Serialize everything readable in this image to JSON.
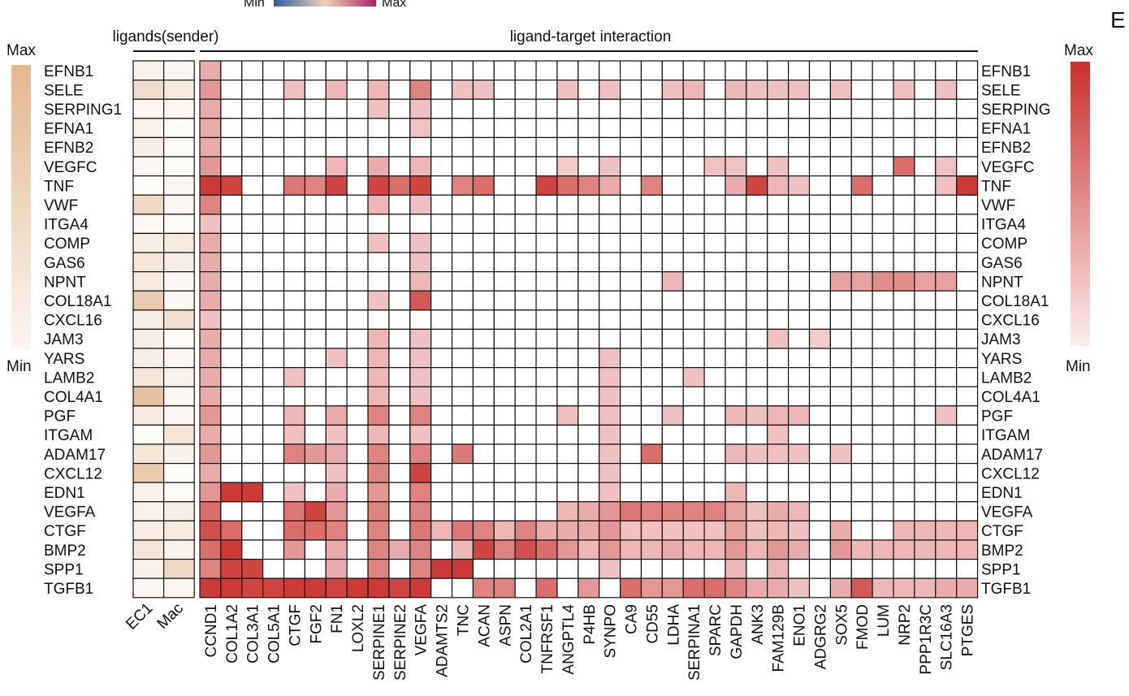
{
  "panel_label": "E",
  "scale_top": {
    "min_label": "Min",
    "max_label": "Max"
  },
  "left_scale": {
    "max_label": "Max",
    "min_label": "Min",
    "color_max": "#e2b78d",
    "color_min": "#fcf6f1"
  },
  "right_scale": {
    "max_label": "Max",
    "min_label": "Min",
    "color_max": "#c9302c",
    "color_min": "#fbeeed"
  },
  "colors": {
    "ligand_max": "#d9a77a",
    "interaction_max": "#c9302c",
    "grid": "#111111"
  },
  "chart_data": [
    {
      "type": "heatmap",
      "title": "ligands(sender)",
      "rows": [
        "EFNB1",
        "SELE",
        "SERPING1",
        "EFNA1",
        "EFNB2",
        "VEGFC",
        "TNF",
        "VWF",
        "ITGA4",
        "COMP",
        "GAS6",
        "NPNT",
        "COL18A1",
        "CXCL16",
        "JAM3",
        "YARS",
        "LAMB2",
        "COL4A1",
        "PGF",
        "ITGAM",
        "ADAM17",
        "CXCL12",
        "EDN1",
        "VEGFA",
        "CTGF",
        "BMP2",
        "SPP1",
        "TGFB1"
      ],
      "columns": [
        "EC1",
        "Mac"
      ],
      "values": [
        [
          0.15,
          0.1
        ],
        [
          0.4,
          0.25
        ],
        [
          0.1,
          0.1
        ],
        [
          0.15,
          0.05
        ],
        [
          0.2,
          0.05
        ],
        [
          0.1,
          0.05
        ],
        [
          0.05,
          0.1
        ],
        [
          0.45,
          0.1
        ],
        [
          0.1,
          0.05
        ],
        [
          0.2,
          0.25
        ],
        [
          0.3,
          0.2
        ],
        [
          0.25,
          0.1
        ],
        [
          0.6,
          0.1
        ],
        [
          0.2,
          0.35
        ],
        [
          0.2,
          0.05
        ],
        [
          0.2,
          0.1
        ],
        [
          0.3,
          0.15
        ],
        [
          0.7,
          0.1
        ],
        [
          0.25,
          0.1
        ],
        [
          0.05,
          0.3
        ],
        [
          0.3,
          0.15
        ],
        [
          0.6,
          0.05
        ],
        [
          0.15,
          0.05
        ],
        [
          0.15,
          0.2
        ],
        [
          0.2,
          0.25
        ],
        [
          0.3,
          0.15
        ],
        [
          0.15,
          0.45
        ],
        [
          0.1,
          0.1
        ]
      ]
    },
    {
      "type": "heatmap",
      "title": "ligand-target interaction",
      "rows": [
        "EFNB1",
        "SELE",
        "SERPING1",
        "EFNA1",
        "EFNB2",
        "VEGFC",
        "TNF",
        "VWF",
        "ITGA4",
        "COMP",
        "GAS6",
        "NPNT",
        "COL18A1",
        "CXCL16",
        "JAM3",
        "YARS",
        "LAMB2",
        "COL4A1",
        "PGF",
        "ITGAM",
        "ADAM17",
        "CXCL12",
        "EDN1",
        "VEGFA",
        "CTGF",
        "BMP2",
        "SPP1",
        "TGFB1"
      ],
      "row_labels_right": [
        "EFNB1",
        "SELE",
        "SERPING",
        "EFNA1",
        "EFNB2",
        "VEGFC",
        "TNF",
        "VWF",
        "ITGA4",
        "COMP",
        "GAS6",
        "NPNT",
        "COL18A1",
        "CXCL16",
        "JAM3",
        "YARS",
        "LAMB2",
        "COL4A1",
        "PGF",
        "ITGAM",
        "ADAM17",
        "CXCL12",
        "EDN1",
        "VEGFA",
        "CTGF",
        "BMP2",
        "SPP1",
        "TGFB1"
      ],
      "columns": [
        "CCND1",
        "COL1A2",
        "COL3A1",
        "COL5A1",
        "CTGF",
        "FGF2",
        "FN1",
        "LOXL2",
        "SERPINE1",
        "SERPINE2",
        "VEGFA",
        "ADAMTS2",
        "TNC",
        "ACAN",
        "ASPN",
        "COL2A1",
        "TNFRSF1",
        "ANGPTL4",
        "P4HB",
        "SYNPO",
        "CA9",
        "CD55",
        "LDHA",
        "SERPINA1",
        "SPARC",
        "GAPDH",
        "ANK3",
        "FAM129B",
        "ENO1",
        "ADGRG2",
        "SOX5",
        "FMOD",
        "LUM",
        "NRP2",
        "PPP1R3C",
        "SLC16A3",
        "PTGES"
      ],
      "column_labels_shown": [
        "CCND1",
        "COL1A2",
        "COL3A1",
        "COL5A1",
        "CTGF",
        "FGF2",
        "FN1",
        "LOXL2",
        "SERPINE1",
        "SERPINE2",
        "VEGFA",
        "ADAMTS2",
        "TNC",
        "ACAN",
        "ASPN",
        "COL2A1",
        "TNFRSF1",
        "ANGPTL4",
        "P4HB",
        "SYNPO",
        "CA9",
        "CD55",
        "LDHA",
        "SERPINA1",
        "SPARC",
        "GAPDH",
        "ANK3",
        "FAM129B",
        "ENO1",
        "ADGRG2",
        "SOX5",
        "FMOD",
        "LUM",
        "NRP2",
        "PPP1R3C",
        "SLC16A3",
        "PTGES"
      ],
      "values": [
        [
          0.4,
          0,
          0,
          0,
          0,
          0,
          0,
          0,
          0,
          0,
          0,
          0,
          0,
          0,
          0,
          0,
          0,
          0,
          0,
          0,
          0,
          0,
          0,
          0,
          0,
          0,
          0,
          0,
          0,
          0,
          0,
          0,
          0,
          0,
          0,
          0,
          0
        ],
        [
          0.5,
          0,
          0,
          0,
          0.3,
          0,
          0.35,
          0,
          0.35,
          0,
          0.6,
          0,
          0.3,
          0.3,
          0,
          0,
          0,
          0.3,
          0,
          0.3,
          0,
          0,
          0.3,
          0.35,
          0,
          0.35,
          0.3,
          0.3,
          0.3,
          0,
          0.3,
          0,
          0,
          0.3,
          0,
          0.3,
          0
        ],
        [
          0.4,
          0,
          0,
          0,
          0,
          0,
          0,
          0,
          0.3,
          0,
          0.3,
          0,
          0,
          0,
          0,
          0,
          0,
          0,
          0,
          0,
          0,
          0,
          0,
          0,
          0,
          0,
          0,
          0,
          0,
          0,
          0,
          0,
          0,
          0,
          0,
          0,
          0
        ],
        [
          0.4,
          0,
          0,
          0,
          0,
          0,
          0,
          0,
          0,
          0,
          0.3,
          0,
          0,
          0,
          0,
          0,
          0,
          0,
          0,
          0,
          0,
          0,
          0,
          0,
          0,
          0,
          0,
          0,
          0,
          0,
          0,
          0,
          0,
          0,
          0,
          0,
          0
        ],
        [
          0.4,
          0,
          0,
          0,
          0,
          0,
          0,
          0,
          0,
          0,
          0,
          0,
          0,
          0,
          0,
          0,
          0,
          0,
          0,
          0,
          0,
          0,
          0,
          0,
          0,
          0,
          0,
          0,
          0,
          0,
          0,
          0,
          0,
          0,
          0,
          0,
          0
        ],
        [
          0.5,
          0,
          0,
          0,
          0,
          0,
          0.35,
          0,
          0.4,
          0,
          0.35,
          0,
          0,
          0,
          0,
          0,
          0,
          0.25,
          0,
          0.3,
          0,
          0,
          0,
          0,
          0.3,
          0.3,
          0,
          0.3,
          0,
          0,
          0,
          0,
          0,
          0.7,
          0,
          0.3,
          0
        ],
        [
          0.95,
          0.9,
          0,
          0,
          0.65,
          0.6,
          0.9,
          0,
          0.9,
          0.7,
          0.9,
          0,
          0.6,
          0.7,
          0,
          0,
          0.9,
          0.7,
          0.6,
          0.4,
          0,
          0.6,
          0,
          0,
          0,
          0.4,
          0.9,
          0.35,
          0.3,
          0,
          0,
          0.7,
          0,
          0,
          0,
          0.3,
          0.95
        ],
        [
          0.6,
          0,
          0,
          0,
          0,
          0,
          0,
          0,
          0.35,
          0,
          0.3,
          0,
          0,
          0,
          0,
          0,
          0,
          0,
          0,
          0,
          0,
          0,
          0,
          0,
          0,
          0,
          0,
          0,
          0,
          0,
          0,
          0,
          0,
          0,
          0,
          0,
          0
        ],
        [
          0.3,
          0,
          0,
          0,
          0,
          0,
          0,
          0,
          0,
          0,
          0,
          0,
          0,
          0,
          0,
          0,
          0,
          0,
          0,
          0,
          0,
          0,
          0,
          0,
          0,
          0,
          0,
          0,
          0,
          0,
          0,
          0,
          0,
          0,
          0,
          0,
          0
        ],
        [
          0.4,
          0,
          0,
          0,
          0,
          0,
          0,
          0,
          0.3,
          0,
          0.3,
          0,
          0,
          0,
          0,
          0,
          0,
          0,
          0,
          0,
          0,
          0,
          0,
          0,
          0,
          0,
          0,
          0,
          0,
          0,
          0,
          0,
          0,
          0,
          0,
          0,
          0
        ],
        [
          0.4,
          0,
          0,
          0,
          0,
          0,
          0,
          0,
          0,
          0,
          0.3,
          0,
          0,
          0,
          0,
          0,
          0,
          0,
          0,
          0,
          0,
          0,
          0,
          0,
          0,
          0,
          0,
          0,
          0,
          0,
          0,
          0,
          0,
          0,
          0,
          0,
          0
        ],
        [
          0.4,
          0,
          0,
          0,
          0,
          0,
          0,
          0,
          0,
          0,
          0.35,
          0,
          0,
          0,
          0,
          0,
          0,
          0,
          0,
          0,
          0,
          0,
          0.35,
          0,
          0,
          0,
          0,
          0,
          0,
          0,
          0.45,
          0.45,
          0.55,
          0.55,
          0.45,
          0.45,
          0
        ],
        [
          0.4,
          0,
          0,
          0,
          0,
          0,
          0,
          0,
          0.3,
          0,
          0.8,
          0,
          0,
          0,
          0,
          0,
          0,
          0,
          0,
          0,
          0,
          0,
          0,
          0,
          0,
          0,
          0,
          0,
          0,
          0,
          0,
          0,
          0,
          0,
          0,
          0,
          0
        ],
        [
          0.3,
          0,
          0,
          0,
          0,
          0,
          0,
          0,
          0,
          0,
          0,
          0,
          0,
          0,
          0,
          0,
          0,
          0,
          0,
          0,
          0,
          0,
          0,
          0,
          0,
          0,
          0,
          0,
          0,
          0,
          0,
          0,
          0,
          0,
          0,
          0,
          0
        ],
        [
          0.4,
          0,
          0,
          0,
          0,
          0,
          0,
          0,
          0.35,
          0,
          0.3,
          0,
          0,
          0,
          0,
          0,
          0,
          0,
          0,
          0,
          0,
          0,
          0,
          0,
          0,
          0,
          0,
          0.3,
          0,
          0.25,
          0,
          0,
          0,
          0,
          0,
          0,
          0
        ],
        [
          0.4,
          0,
          0,
          0,
          0,
          0,
          0.3,
          0,
          0.35,
          0,
          0.3,
          0,
          0,
          0,
          0,
          0,
          0,
          0,
          0,
          0.3,
          0,
          0,
          0,
          0,
          0,
          0,
          0,
          0,
          0,
          0,
          0,
          0,
          0,
          0,
          0,
          0,
          0
        ],
        [
          0.4,
          0,
          0,
          0,
          0.3,
          0,
          0,
          0,
          0.35,
          0,
          0.3,
          0,
          0,
          0,
          0,
          0,
          0,
          0,
          0,
          0.3,
          0,
          0,
          0,
          0.3,
          0,
          0,
          0,
          0,
          0,
          0,
          0,
          0,
          0,
          0,
          0,
          0,
          0
        ],
        [
          0.4,
          0,
          0,
          0,
          0,
          0,
          0,
          0,
          0.35,
          0,
          0.3,
          0,
          0,
          0,
          0,
          0,
          0,
          0,
          0,
          0.3,
          0,
          0,
          0,
          0,
          0,
          0,
          0,
          0,
          0,
          0,
          0,
          0,
          0,
          0,
          0,
          0,
          0
        ],
        [
          0.5,
          0,
          0,
          0,
          0.35,
          0,
          0.4,
          0,
          0.6,
          0,
          0.6,
          0,
          0,
          0,
          0,
          0,
          0,
          0.3,
          0,
          0.3,
          0,
          0,
          0.3,
          0,
          0,
          0.35,
          0.3,
          0.35,
          0.35,
          0,
          0,
          0,
          0,
          0,
          0,
          0.3,
          0
        ],
        [
          0.4,
          0,
          0,
          0,
          0.3,
          0,
          0.3,
          0,
          0.35,
          0,
          0.3,
          0,
          0,
          0,
          0,
          0,
          0,
          0,
          0,
          0.3,
          0,
          0,
          0,
          0,
          0,
          0,
          0,
          0.3,
          0,
          0,
          0,
          0,
          0,
          0,
          0,
          0,
          0
        ],
        [
          0.5,
          0,
          0,
          0,
          0.6,
          0.5,
          0.4,
          0,
          0.6,
          0,
          0.6,
          0,
          0.65,
          0,
          0,
          0,
          0,
          0,
          0,
          0.3,
          0,
          0.7,
          0,
          0,
          0,
          0.35,
          0.3,
          0.3,
          0.3,
          0,
          0.3,
          0,
          0,
          0,
          0,
          0,
          0
        ],
        [
          0.4,
          0,
          0,
          0,
          0,
          0,
          0.3,
          0,
          0.6,
          0,
          0.9,
          0,
          0,
          0,
          0,
          0,
          0,
          0,
          0,
          0.3,
          0,
          0,
          0,
          0,
          0,
          0,
          0,
          0,
          0,
          0,
          0,
          0,
          0,
          0,
          0,
          0,
          0
        ],
        [
          0.5,
          0.95,
          0.95,
          0,
          0.3,
          0,
          0.4,
          0,
          0.5,
          0,
          0.6,
          0,
          0,
          0,
          0,
          0,
          0,
          0,
          0,
          0.3,
          0,
          0,
          0,
          0,
          0,
          0.35,
          0,
          0,
          0,
          0,
          0,
          0,
          0,
          0,
          0,
          0,
          0
        ],
        [
          0.7,
          0,
          0,
          0,
          0.65,
          0.9,
          0.5,
          0,
          0.6,
          0,
          0.6,
          0,
          0,
          0,
          0,
          0,
          0,
          0.35,
          0.4,
          0.5,
          0.65,
          0.6,
          0.6,
          0.6,
          0.6,
          0.45,
          0.3,
          0.4,
          0.35,
          0,
          0,
          0,
          0,
          0,
          0,
          0,
          0
        ],
        [
          0.85,
          0.7,
          0,
          0,
          0.7,
          0.7,
          0.6,
          0,
          0.6,
          0,
          0.65,
          0.35,
          0.65,
          0.6,
          0.35,
          0.6,
          0.4,
          0.4,
          0.4,
          0.5,
          0.3,
          0.3,
          0.3,
          0.3,
          0.3,
          0.45,
          0.3,
          0.35,
          0.3,
          0,
          0.4,
          0,
          0,
          0.35,
          0.35,
          0.35,
          0.35
        ],
        [
          0.7,
          0.95,
          0,
          0,
          0.5,
          0,
          0.4,
          0,
          0.6,
          0.4,
          0.6,
          0,
          0.35,
          0.9,
          0.6,
          0.85,
          0.7,
          0.5,
          0.35,
          0.5,
          0.35,
          0.35,
          0.4,
          0.35,
          0.35,
          0.5,
          0.35,
          0.5,
          0.4,
          0,
          0.5,
          0.35,
          0.35,
          0.35,
          0.35,
          0.35,
          0.35
        ],
        [
          0.6,
          0.9,
          0.9,
          0,
          0,
          0,
          0.4,
          0,
          0.6,
          0,
          0.6,
          0.95,
          0.95,
          0,
          0,
          0,
          0,
          0,
          0,
          0.3,
          0,
          0,
          0,
          0,
          0,
          0.35,
          0,
          0.35,
          0,
          0,
          0,
          0,
          0,
          0,
          0,
          0,
          0
        ],
        [
          0.95,
          0.95,
          0.9,
          0.9,
          0.95,
          0.95,
          0.9,
          0.95,
          0.95,
          0.9,
          0.95,
          0,
          0,
          0.6,
          0.6,
          0,
          0.7,
          0,
          0.5,
          0,
          0.7,
          0.5,
          0.5,
          0.7,
          0.7,
          0.6,
          0.4,
          0.4,
          0.3,
          0,
          0.4,
          0.8,
          0.35,
          0.35,
          0.35,
          0.4,
          0.4
        ]
      ]
    }
  ]
}
